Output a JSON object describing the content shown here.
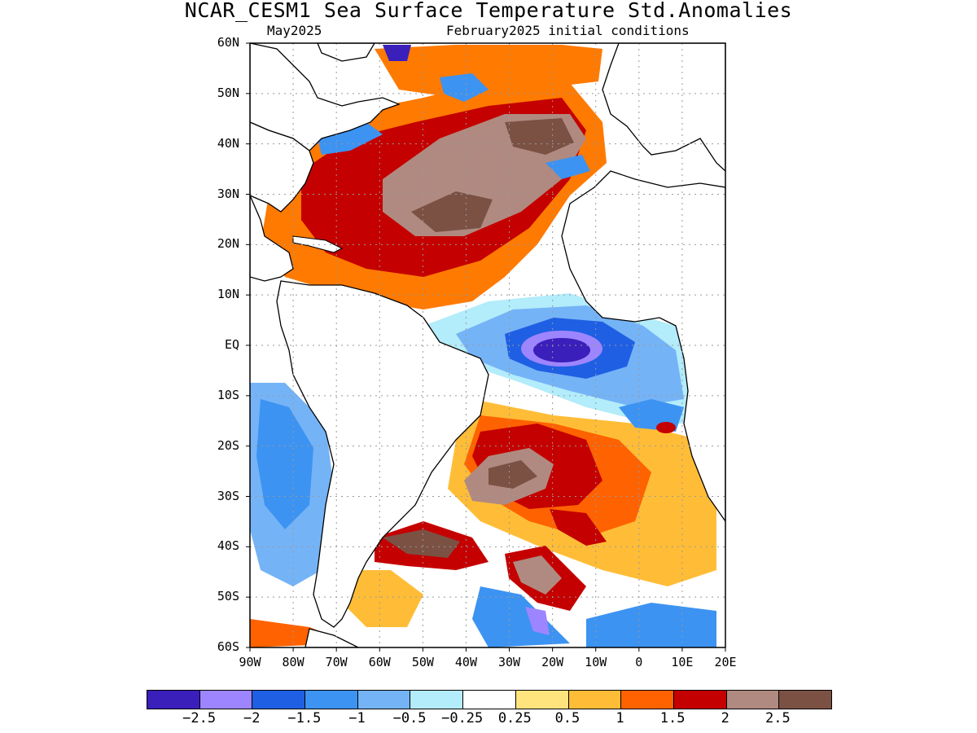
{
  "title": "NCAR_CESM1 Sea Surface Temperature Std.Anomalies",
  "subtitle_left": "May2025",
  "subtitle_right": "February2025 initial conditions",
  "map": {
    "lat_labels": [
      "60N",
      "50N",
      "40N",
      "30N",
      "20N",
      "10N",
      "EQ",
      "10S",
      "20S",
      "30S",
      "40S",
      "50S",
      "60S"
    ],
    "lon_labels": [
      "90W",
      "80W",
      "70W",
      "60W",
      "50W",
      "40W",
      "30W",
      "20W",
      "10W",
      "0",
      "10E",
      "20E"
    ],
    "lat_range": [
      -60,
      60
    ],
    "lon_range": [
      -90,
      20
    ],
    "grid": true,
    "anomaly_features": [
      {
        "lon": -40,
        "lat": 30,
        "rx": 22,
        "ry": 10,
        "level": 2.5
      },
      {
        "lon": -15,
        "lat": 45,
        "rx": 15,
        "ry": 12,
        "level": 2.5
      },
      {
        "lon": -62,
        "lat": 30,
        "rx": 12,
        "ry": 8,
        "level": 1.5
      },
      {
        "lon": -25,
        "lat": 0,
        "rx": 8,
        "ry": 3,
        "level": -2.5
      },
      {
        "lon": -28,
        "lat": -25,
        "rx": 10,
        "ry": 6,
        "level": 2.5
      },
      {
        "lon": -55,
        "lat": -15,
        "rx": 10,
        "ry": 14,
        "level": -1
      },
      {
        "lon": -25,
        "lat": -45,
        "rx": 5,
        "ry": 4,
        "level": 2.5
      },
      {
        "lon": -50,
        "lat": -40,
        "rx": 8,
        "ry": 4,
        "level": 2.5
      }
    ]
  },
  "colorbar": {
    "colors": [
      "#3a1fbb",
      "#9d85ff",
      "#1f5fe3",
      "#3c93f2",
      "#75b3f7",
      "#b3ecfa",
      "#ffffff",
      "#ffe47d",
      "#ffbd37",
      "#ff6200",
      "#c40000",
      "#b08a80",
      "#7b5144"
    ],
    "labels": [
      "−2.5",
      "−2",
      "−1.5",
      "−1",
      "−0.5",
      "−0.25",
      "0.25",
      "0.5",
      "1",
      "1.5",
      "2",
      "2.5"
    ]
  }
}
